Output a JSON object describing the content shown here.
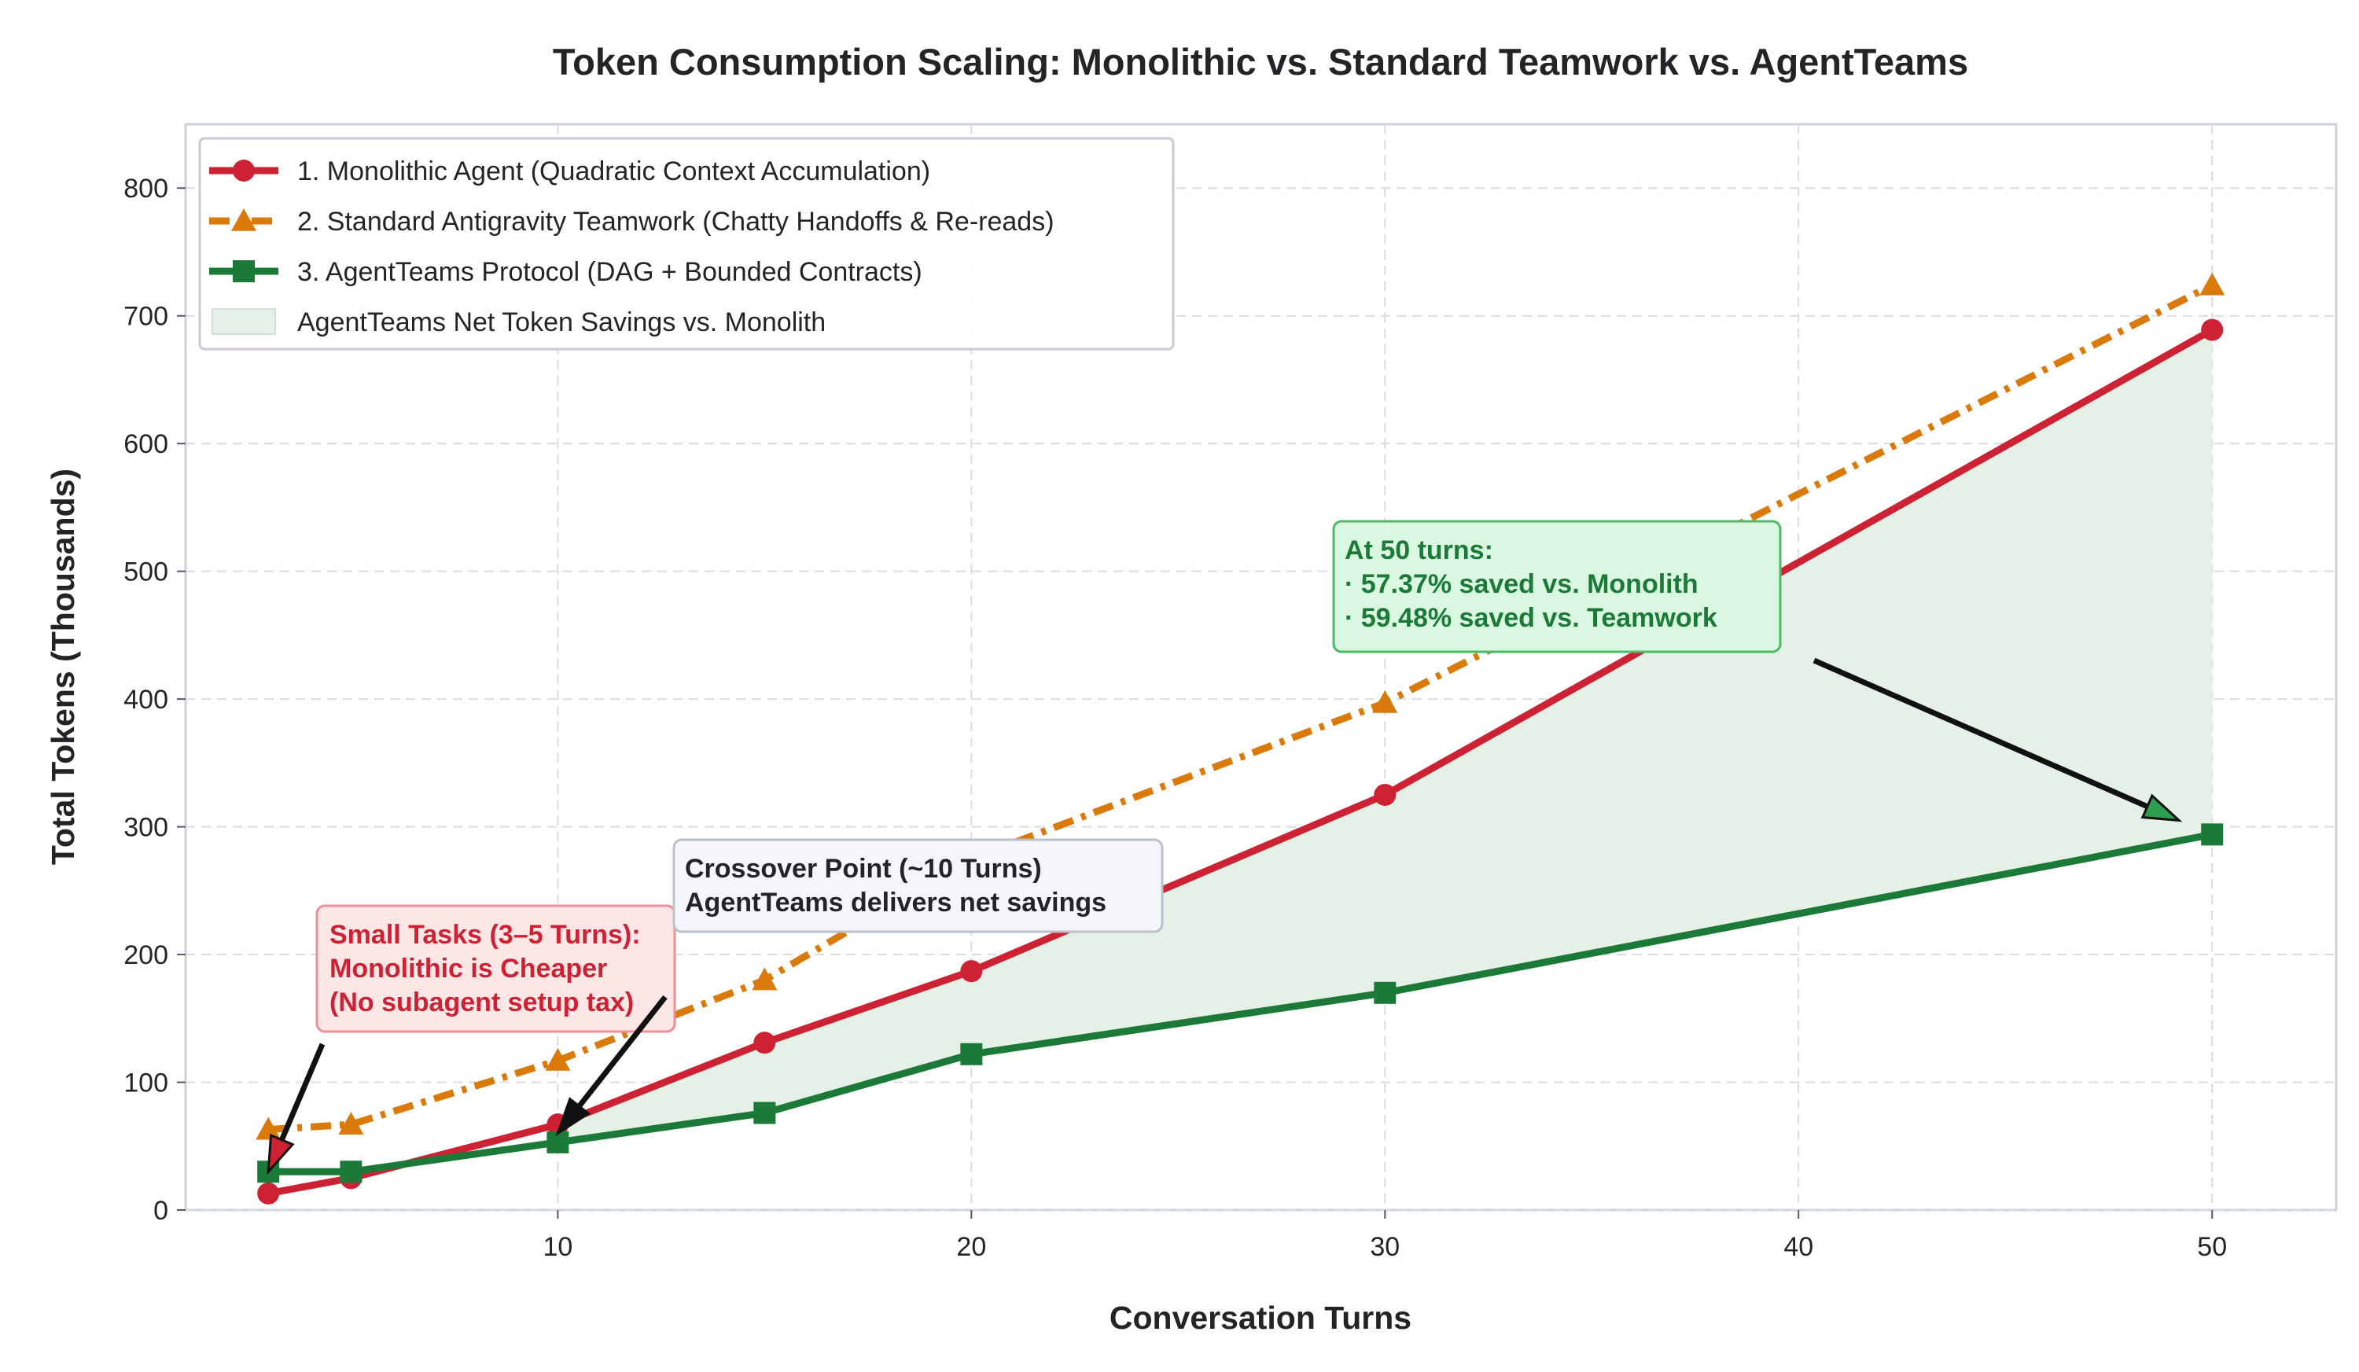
{
  "colors": {
    "monolithic": "#CC2233",
    "teamwork": "#D97A0B",
    "agentteams": "#1C7A38",
    "savings_fill": "#E5F0E7",
    "grid": "#D9DDE2",
    "frame": "#CBD2DA",
    "text": "#222428"
  },
  "chart_data": {
    "type": "line",
    "title": "Token Consumption Scaling: Monolithic vs. Standard Teamwork vs. AgentTeams",
    "xlabel": "Conversation Turns",
    "ylabel": "Total Tokens (Thousands)",
    "xlim": [
      1,
      53
    ],
    "ylim": [
      0,
      850
    ],
    "xticks": [
      10,
      20,
      30,
      40,
      50
    ],
    "yticks": [
      0,
      100,
      200,
      300,
      400,
      500,
      600,
      700,
      800
    ],
    "grid": true,
    "legend_position": "top-left",
    "series": [
      {
        "name": "1. Monolithic Agent (Quadratic Context Accumulation)",
        "key": "monolithic",
        "marker": "circle",
        "line_style": "solid",
        "x": [
          3,
          5,
          10,
          15,
          20,
          30,
          50
        ],
        "y": [
          13,
          25,
          67,
          131,
          187,
          325,
          689
        ]
      },
      {
        "name": "2. Standard Antigravity Teamwork (Chatty Handoffs & Re-reads)",
        "key": "teamwork",
        "marker": "triangle",
        "line_style": "dashdot",
        "x": [
          3,
          5,
          10,
          15,
          20,
          30,
          50
        ],
        "y": [
          63,
          67,
          117,
          180,
          275,
          397,
          724
        ]
      },
      {
        "name": "3. AgentTeams Protocol (DAG + Bounded Contracts)",
        "key": "agentteams",
        "marker": "square",
        "line_style": "solid",
        "x": [
          3,
          5,
          10,
          15,
          20,
          30,
          50
        ],
        "y": [
          30,
          30,
          53,
          76,
          122,
          170,
          294
        ]
      }
    ],
    "fill_between": {
      "name": "AgentTeams Net Token Savings vs. Monolith",
      "upper": "monolithic",
      "lower": "agentteams",
      "from_x": 10,
      "to_x": 50
    },
    "annotations": [
      {
        "key": "small_tasks",
        "lines": [
          "Small Tasks (3–5 Turns):",
          "Monolithic is Cheaper",
          "(No subagent setup tax)"
        ],
        "text_color": "#CC2233",
        "box_fill": "#FDE6E6",
        "box_stroke": "#EE8E96",
        "arrow_to": [
          3,
          30
        ]
      },
      {
        "key": "crossover",
        "lines": [
          "Crossover Point (~10 Turns)",
          "AgentTeams delivers net savings"
        ],
        "text_color": "#222428",
        "box_fill": "#F4F6F9",
        "box_stroke": "#B9C1CB",
        "arrow_to": [
          10,
          60
        ]
      },
      {
        "key": "fifty_turns",
        "lines": [
          "At 50 turns:",
          "· 57.37% saved vs. Monolith",
          "· 59.48% saved vs. Teamwork"
        ],
        "text_color": "#1C7A38",
        "box_fill": "#D9F7E1",
        "box_stroke": "#4CBB66",
        "arrow_to": [
          49.2,
          305
        ]
      }
    ]
  }
}
